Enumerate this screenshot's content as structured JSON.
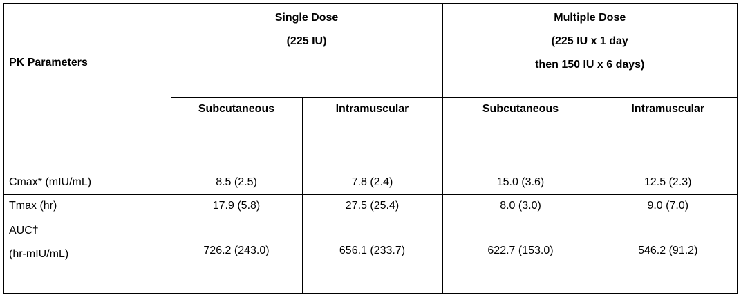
{
  "table": {
    "corner_header": "PK Parameters",
    "dose_groups": [
      {
        "name": "single-dose",
        "label_lines": [
          "Single Dose",
          "(225 IU)"
        ]
      },
      {
        "name": "multiple-dose",
        "label_lines": [
          "Multiple Dose",
          "(225 IU x 1 day",
          "then 150 IU x 6 days)"
        ]
      }
    ],
    "route_headers": [
      "Subcutaneous",
      "Intramuscular",
      "Subcutaneous",
      "Intramuscular"
    ],
    "rows": [
      {
        "label_lines": [
          "Cmax* (mIU/mL)"
        ],
        "values": [
          "8.5 (2.5)",
          "7.8 (2.4)",
          "15.0 (3.6)",
          "12.5 (2.3)"
        ]
      },
      {
        "label_lines": [
          "Tmax (hr)"
        ],
        "values": [
          "17.9 (5.8)",
          "27.5 (25.4)",
          "8.0 (3.0)",
          "9.0 (7.0)"
        ]
      },
      {
        "label_lines": [
          "AUC†",
          "(hr-mIU/mL)"
        ],
        "values": [
          "726.2 (243.0)",
          "656.1 (233.7)",
          "622.7 (153.0)",
          "546.2 (91.2)"
        ]
      }
    ]
  },
  "colors": {
    "border": "#000000",
    "background": "#ffffff",
    "text": "#000000"
  }
}
